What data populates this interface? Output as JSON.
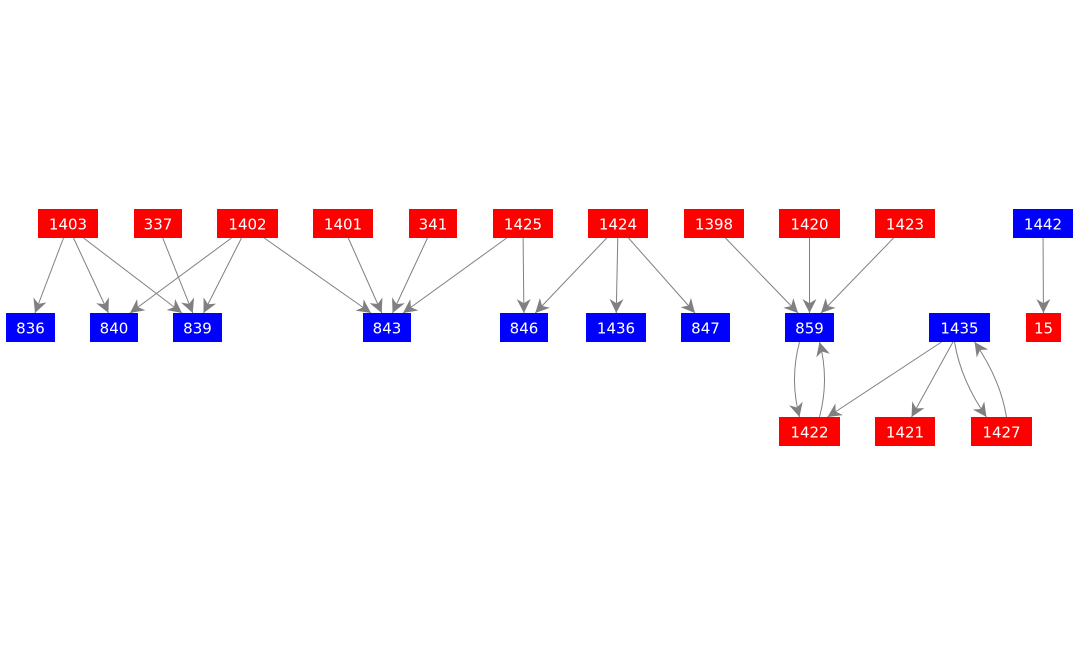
{
  "colors": {
    "red": "#ff0000",
    "blue": "#0000ff",
    "edge": "#808080",
    "label": "#ffffff"
  },
  "nodes": [
    {
      "id": "1403",
      "color": "red"
    },
    {
      "id": "337",
      "color": "red"
    },
    {
      "id": "1402",
      "color": "red"
    },
    {
      "id": "1401",
      "color": "red"
    },
    {
      "id": "341",
      "color": "red"
    },
    {
      "id": "1425",
      "color": "red"
    },
    {
      "id": "1424",
      "color": "red"
    },
    {
      "id": "1398",
      "color": "red"
    },
    {
      "id": "1420",
      "color": "red"
    },
    {
      "id": "1423",
      "color": "red"
    },
    {
      "id": "1442",
      "color": "blue"
    },
    {
      "id": "836",
      "color": "blue"
    },
    {
      "id": "840",
      "color": "blue"
    },
    {
      "id": "839",
      "color": "blue"
    },
    {
      "id": "843",
      "color": "blue"
    },
    {
      "id": "846",
      "color": "blue"
    },
    {
      "id": "1436",
      "color": "blue"
    },
    {
      "id": "847",
      "color": "blue"
    },
    {
      "id": "859",
      "color": "blue"
    },
    {
      "id": "1435",
      "color": "blue"
    },
    {
      "id": "15",
      "color": "red"
    },
    {
      "id": "1422",
      "color": "red"
    },
    {
      "id": "1421",
      "color": "red"
    },
    {
      "id": "1427",
      "color": "red"
    }
  ],
  "edges": [
    [
      "1403",
      "836"
    ],
    [
      "1403",
      "840"
    ],
    [
      "1403",
      "839"
    ],
    [
      "337",
      "839"
    ],
    [
      "1402",
      "840"
    ],
    [
      "1402",
      "839"
    ],
    [
      "1402",
      "843"
    ],
    [
      "1401",
      "843"
    ],
    [
      "341",
      "843"
    ],
    [
      "1425",
      "843"
    ],
    [
      "1425",
      "846"
    ],
    [
      "1424",
      "846"
    ],
    [
      "1424",
      "1436"
    ],
    [
      "1424",
      "847"
    ],
    [
      "1398",
      "859"
    ],
    [
      "1420",
      "859"
    ],
    [
      "1423",
      "859"
    ],
    [
      "1442",
      "15"
    ],
    [
      "859",
      "1422"
    ],
    [
      "1422",
      "859"
    ],
    [
      "1435",
      "1422"
    ],
    [
      "1435",
      "1421"
    ],
    [
      "1435",
      "1427"
    ],
    [
      "1427",
      "1435"
    ]
  ]
}
